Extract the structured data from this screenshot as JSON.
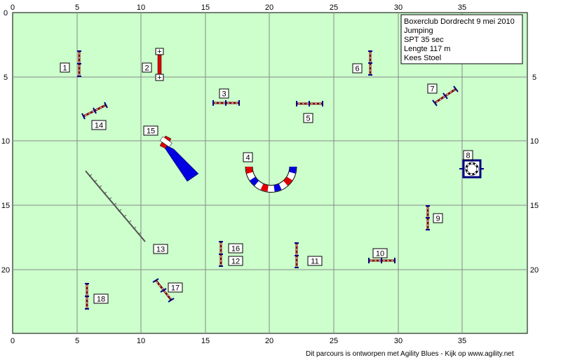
{
  "info": {
    "lines": [
      "Boxerclub Dordrecht 9 mei 2010",
      "Jumping",
      "SPT 35 sec",
      "Lengte 117 m",
      "Kees Stoel"
    ]
  },
  "axes": {
    "top_ticks": [
      "0",
      "5",
      "10",
      "15",
      "20",
      "25",
      "30",
      "35"
    ],
    "bottom_ticks": [
      "0",
      "5",
      "10",
      "15",
      "20",
      "25",
      "30",
      "35"
    ],
    "left_ticks": [
      "0",
      "5",
      "10",
      "15",
      "20"
    ],
    "right_ticks": [
      "5",
      "10",
      "15",
      "20"
    ]
  },
  "field_color": "#ccffcc",
  "obstacles": [
    {
      "number": "1",
      "kind": "jump",
      "name": "jump-1"
    },
    {
      "number": "2",
      "kind": "wall",
      "name": "wall-2"
    },
    {
      "number": "3",
      "kind": "jump",
      "name": "jump-3"
    },
    {
      "number": "4",
      "kind": "tunnel",
      "name": "tunnel-4"
    },
    {
      "number": "5",
      "kind": "jump",
      "name": "jump-5"
    },
    {
      "number": "6",
      "kind": "jump",
      "name": "jump-6"
    },
    {
      "number": "7",
      "kind": "jump",
      "name": "jump-7"
    },
    {
      "number": "8",
      "kind": "tire",
      "name": "tire-8"
    },
    {
      "number": "9",
      "kind": "jump",
      "name": "jump-9"
    },
    {
      "number": "10",
      "kind": "jump",
      "name": "jump-10"
    },
    {
      "number": "11",
      "kind": "jump",
      "name": "jump-11"
    },
    {
      "number": "12",
      "kind": "jump",
      "name": "jump-12"
    },
    {
      "number": "13",
      "kind": "weave",
      "name": "weave-poles-13"
    },
    {
      "number": "14",
      "kind": "jump",
      "name": "jump-14"
    },
    {
      "number": "15",
      "kind": "chute",
      "name": "chute-15"
    },
    {
      "number": "16",
      "kind": "jump",
      "name": "jump-16"
    },
    {
      "number": "17",
      "kind": "jump",
      "name": "jump-17"
    },
    {
      "number": "18",
      "kind": "jump",
      "name": "jump-18"
    }
  ],
  "footer": "Dit parcours is ontworpen met Agility Blues - Kijk op www.agility.net"
}
